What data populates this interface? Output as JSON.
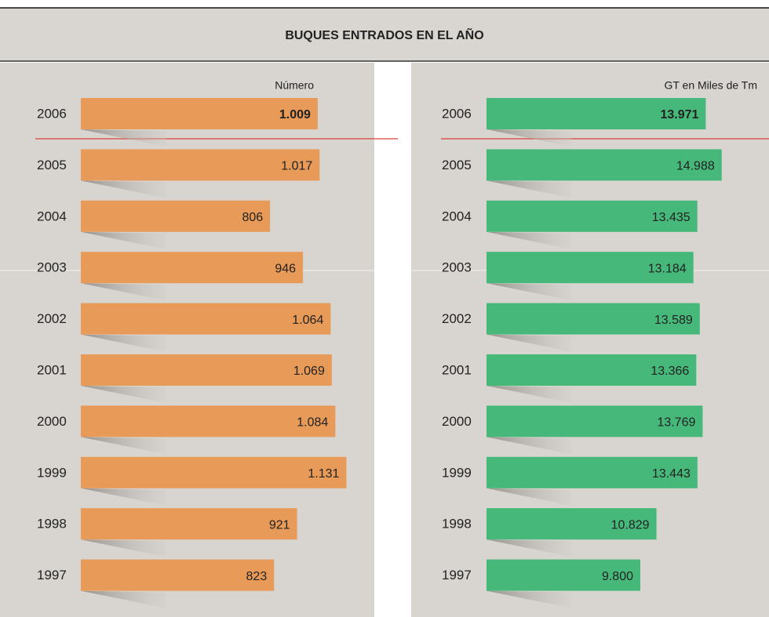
{
  "title": "BUQUES ENTRADOS EN EL AÑO",
  "chart_data": [
    {
      "type": "bar",
      "orientation": "horizontal",
      "subtitle": "Número",
      "color": "#e89a58",
      "categories": [
        "2006",
        "2005",
        "2004",
        "2003",
        "2002",
        "2001",
        "2000",
        "1999",
        "1998",
        "1997"
      ],
      "values": [
        1009,
        1017,
        806,
        946,
        1064,
        1069,
        1084,
        1131,
        921,
        823
      ],
      "value_labels": [
        "1.009",
        "1.017",
        "806",
        "946",
        "1.064",
        "1.069",
        "1.084",
        "1.131",
        "921",
        "823"
      ],
      "xlim": [
        0,
        1250
      ]
    },
    {
      "type": "bar",
      "orientation": "horizontal",
      "subtitle": "GT en Miles de Tm",
      "color": "#46b97a",
      "categories": [
        "2006",
        "2005",
        "2004",
        "2003",
        "2002",
        "2001",
        "2000",
        "1999",
        "1998",
        "1997"
      ],
      "values": [
        13971,
        14988,
        13435,
        13184,
        13589,
        13366,
        13769,
        13443,
        10829,
        9800
      ],
      "value_labels": [
        "13.971",
        "14.988",
        "13.435",
        "13.184",
        "13.589",
        "13.366",
        "13.769",
        "13.443",
        "10.829",
        "9.800"
      ],
      "xlim": [
        0,
        18000
      ]
    }
  ]
}
